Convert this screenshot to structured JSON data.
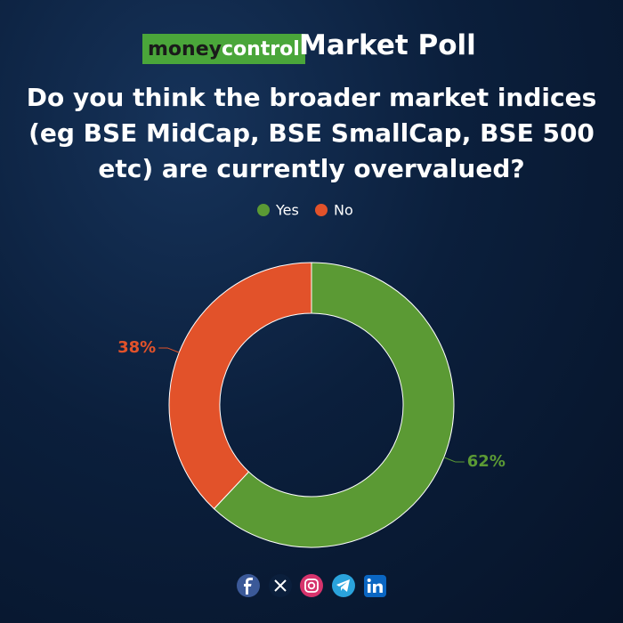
{
  "brand": {
    "first": "money",
    "second": "control"
  },
  "heading": "Market Poll",
  "chart_data": {
    "type": "donut",
    "title": "Do you think the broader market indices (eg BSE MidCap, BSE SmallCap, BSE 500 etc) are currently overvalued?",
    "categories": [
      "Yes",
      "No"
    ],
    "values": [
      62,
      38
    ],
    "value_labels": [
      "62%",
      "38%"
    ],
    "colors": [
      "#5b9a34",
      "#e2522a"
    ],
    "legend": "top"
  }
}
